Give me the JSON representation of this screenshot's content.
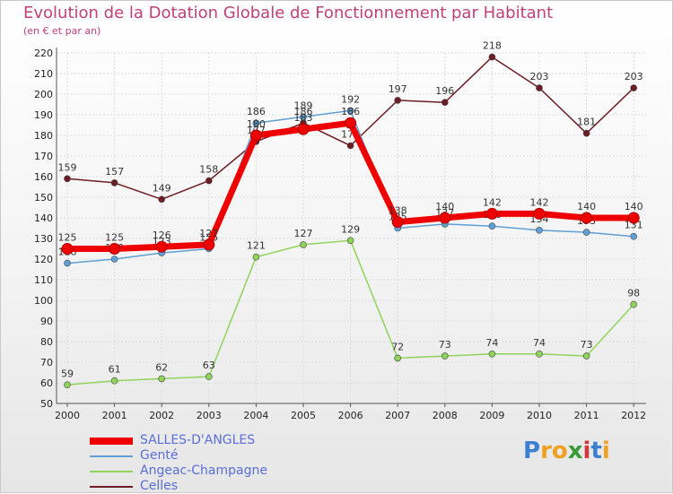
{
  "chart_data": {
    "type": "line",
    "title": "Evolution de la Dotation Globale de Fonctionnement par Habitant",
    "subtitle": "(en € et par an)",
    "x": [
      2000,
      2001,
      2002,
      2003,
      2004,
      2005,
      2006,
      2007,
      2008,
      2009,
      2010,
      2011,
      2012
    ],
    "ylim": [
      50,
      220
    ],
    "yticks": [
      50,
      60,
      70,
      80,
      90,
      100,
      110,
      120,
      130,
      140,
      150,
      160,
      170,
      180,
      190,
      200,
      210,
      220
    ],
    "grid": true,
    "series": [
      {
        "name": "Celles",
        "color": "#6e1c24",
        "values": [
          159,
          157,
          149,
          158,
          177,
          186,
          175,
          197,
          196,
          218,
          203,
          181,
          203
        ]
      },
      {
        "name": "Angeac-Champagne",
        "color": "#8fd45a",
        "values": [
          59,
          61,
          62,
          63,
          121,
          127,
          129,
          72,
          73,
          74,
          74,
          73,
          98
        ]
      },
      {
        "name": "Genté",
        "color": "#5f9fd4",
        "values": [
          118,
          120,
          123,
          125,
          186,
          189,
          192,
          135,
          137,
          136,
          134,
          133,
          131
        ]
      },
      {
        "name": "SALLES-D'ANGLES",
        "color": "#ee0000",
        "values": [
          125,
          125,
          126,
          127,
          180,
          183,
          186,
          138,
          140,
          142,
          142,
          140,
          140
        ]
      }
    ],
    "legend_order": [
      "SALLES-D'ANGLES",
      "Genté",
      "Angeac-Champagne",
      "Celles"
    ]
  },
  "logo": {
    "letters": [
      "P",
      "r",
      "o",
      "x",
      "i",
      "t",
      "i"
    ],
    "colors": [
      "#3a7fd0",
      "#f0a020",
      "#f0a020",
      "#3a9a3a",
      "#d03a3a",
      "#3a7fd0",
      "#f0a020"
    ]
  }
}
